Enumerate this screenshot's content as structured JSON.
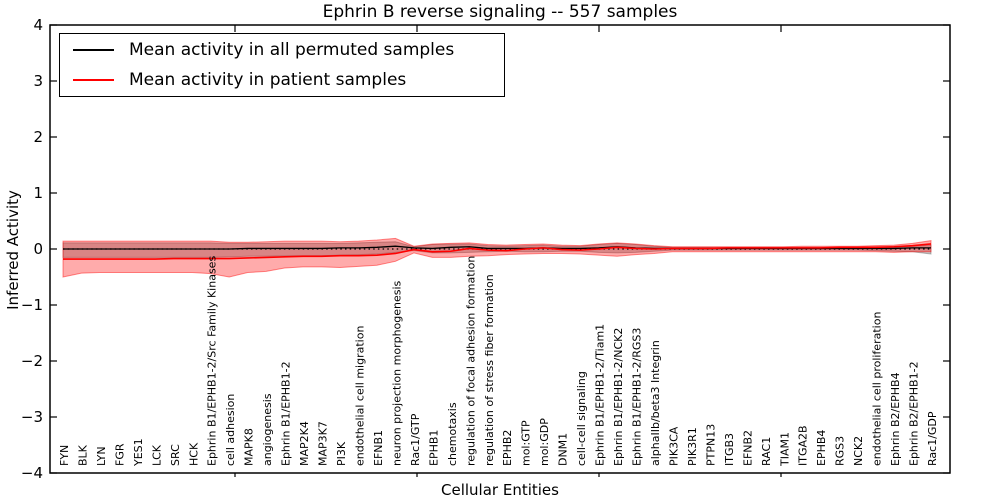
{
  "chart_data": {
    "type": "line",
    "title": "Ephrin B reverse signaling -- 557 samples",
    "xlabel": "Cellular Entities",
    "ylabel": "Inferred Activity",
    "ylim": [
      -4,
      4
    ],
    "ytick_values": [
      4,
      3,
      2,
      1,
      0,
      -1,
      -2,
      -3,
      -4
    ],
    "ytick_labels": [
      "4",
      "3",
      "2",
      "1",
      "0",
      "−1",
      "−2",
      "−3",
      "−4"
    ],
    "grid": false,
    "zero_reference_line": true,
    "legend_position": "upper left",
    "categories": [
      "FYN",
      "BLK",
      "LYN",
      "FGR",
      "YES1",
      "LCK",
      "SRC",
      "HCK",
      "Ephrin B1/EPHB1-2/Src Family Kinases",
      "cell adhesion",
      "MAPK8",
      "angiogenesis",
      "Ephrin B1/EPHB1-2",
      "MAP2K4",
      "MAP3K7",
      "PI3K",
      "endothelial cell migration",
      "EFNB1",
      "neuron projection morphogenesis",
      "Rac1/GTP",
      "EPHB1",
      "chemotaxis",
      "regulation of focal adhesion formation",
      "regulation of stress fiber formation",
      "EPHB2",
      "mol:GTP",
      "mol:GDP",
      "DNM1",
      "cell-cell signaling",
      "Ephrin B1/EPHB1-2/Tiam1",
      "Ephrin B1/EPHB1-2/NCK2",
      "Ephrin B1/EPHB1-2/RGS3",
      "alphaIIb/beta3 Integrin",
      "PIK3CA",
      "PIK3R1",
      "PTPN13",
      "ITGB3",
      "EFNB2",
      "RAC1",
      "TIAM1",
      "ITGA2B",
      "EPHB4",
      "RGS3",
      "NCK2",
      "endothelial cell proliferation",
      "Ephrin B2/EPHB4",
      "Ephrin B2/EPHB1-2",
      "Rac1/GDP"
    ],
    "series": [
      {
        "name": "Mean activity in all permuted samples",
        "color": "#000000",
        "band_color": "rgba(0,0,0,0.22)",
        "values": [
          0.0,
          0.0,
          0.0,
          0.0,
          0.0,
          0.0,
          0.0,
          0.0,
          0.0,
          0.0,
          0.01,
          0.01,
          0.01,
          0.01,
          0.01,
          0.02,
          0.02,
          0.03,
          0.05,
          0.02,
          0.01,
          0.03,
          0.04,
          0.01,
          0.01,
          0.01,
          0.02,
          0.01,
          0.01,
          0.02,
          0.04,
          0.02,
          0.01,
          0.01,
          0.01,
          0.01,
          0.01,
          0.01,
          0.01,
          0.01,
          0.01,
          0.01,
          0.01,
          0.01,
          0.01,
          0.01,
          0.02,
          0.02
        ],
        "band_upper": [
          0.11,
          0.11,
          0.11,
          0.11,
          0.11,
          0.11,
          0.11,
          0.11,
          0.11,
          0.1,
          0.1,
          0.1,
          0.1,
          0.1,
          0.1,
          0.1,
          0.11,
          0.12,
          0.13,
          0.04,
          0.08,
          0.09,
          0.09,
          0.06,
          0.05,
          0.06,
          0.07,
          0.05,
          0.05,
          0.08,
          0.1,
          0.08,
          0.05,
          0.03,
          0.03,
          0.03,
          0.03,
          0.03,
          0.03,
          0.03,
          0.03,
          0.03,
          0.03,
          0.03,
          0.04,
          0.04,
          0.05,
          0.07
        ],
        "band_lower": [
          -0.15,
          -0.15,
          -0.15,
          -0.15,
          -0.15,
          -0.15,
          -0.15,
          -0.15,
          -0.15,
          -0.14,
          -0.13,
          -0.13,
          -0.12,
          -0.12,
          -0.12,
          -0.11,
          -0.1,
          -0.09,
          -0.06,
          -0.03,
          -0.07,
          -0.07,
          -0.06,
          -0.05,
          -0.04,
          -0.05,
          -0.05,
          -0.04,
          -0.04,
          -0.06,
          -0.07,
          -0.06,
          -0.04,
          -0.02,
          -0.02,
          -0.02,
          -0.02,
          -0.02,
          -0.02,
          -0.02,
          -0.02,
          -0.02,
          -0.02,
          -0.02,
          -0.03,
          -0.04,
          -0.05,
          -0.09
        ]
      },
      {
        "name": "Mean activity in patient samples",
        "color": "#ff0000",
        "band_color": "rgba(255,0,0,0.33)",
        "values": [
          -0.18,
          -0.18,
          -0.18,
          -0.18,
          -0.18,
          -0.18,
          -0.17,
          -0.17,
          -0.17,
          -0.17,
          -0.16,
          -0.15,
          -0.14,
          -0.13,
          -0.13,
          -0.12,
          -0.12,
          -0.11,
          -0.08,
          -0.01,
          -0.05,
          -0.04,
          0.01,
          -0.02,
          -0.03,
          0.0,
          0.02,
          -0.01,
          -0.02,
          0.0,
          0.03,
          0.01,
          0.0,
          0.01,
          0.01,
          0.01,
          0.02,
          0.02,
          0.02,
          0.02,
          0.02,
          0.02,
          0.03,
          0.03,
          0.03,
          0.04,
          0.06,
          0.09
        ],
        "band_upper": [
          0.14,
          0.14,
          0.14,
          0.14,
          0.14,
          0.14,
          0.14,
          0.14,
          0.14,
          0.12,
          0.12,
          0.13,
          0.14,
          0.14,
          0.14,
          0.13,
          0.14,
          0.16,
          0.19,
          0.05,
          0.09,
          0.1,
          0.11,
          0.08,
          0.07,
          0.08,
          0.09,
          0.07,
          0.06,
          0.09,
          0.11,
          0.09,
          0.06,
          0.04,
          0.04,
          0.04,
          0.04,
          0.04,
          0.04,
          0.04,
          0.05,
          0.05,
          0.05,
          0.05,
          0.06,
          0.07,
          0.1,
          0.15
        ],
        "band_lower": [
          -0.5,
          -0.43,
          -0.42,
          -0.42,
          -0.42,
          -0.42,
          -0.42,
          -0.42,
          -0.44,
          -0.5,
          -0.42,
          -0.4,
          -0.34,
          -0.32,
          -0.32,
          -0.33,
          -0.31,
          -0.29,
          -0.22,
          -0.07,
          -0.15,
          -0.15,
          -0.13,
          -0.12,
          -0.1,
          -0.09,
          -0.08,
          -0.08,
          -0.09,
          -0.11,
          -0.13,
          -0.1,
          -0.08,
          -0.05,
          -0.05,
          -0.05,
          -0.05,
          -0.05,
          -0.05,
          -0.05,
          -0.05,
          -0.05,
          -0.05,
          -0.05,
          -0.05,
          -0.06,
          -0.05,
          -0.05
        ]
      }
    ]
  },
  "legend": {
    "items": [
      {
        "label": "Mean activity in all permuted samples",
        "color": "#000000"
      },
      {
        "label": "Mean activity in patient samples",
        "color": "#ff0000"
      }
    ]
  }
}
